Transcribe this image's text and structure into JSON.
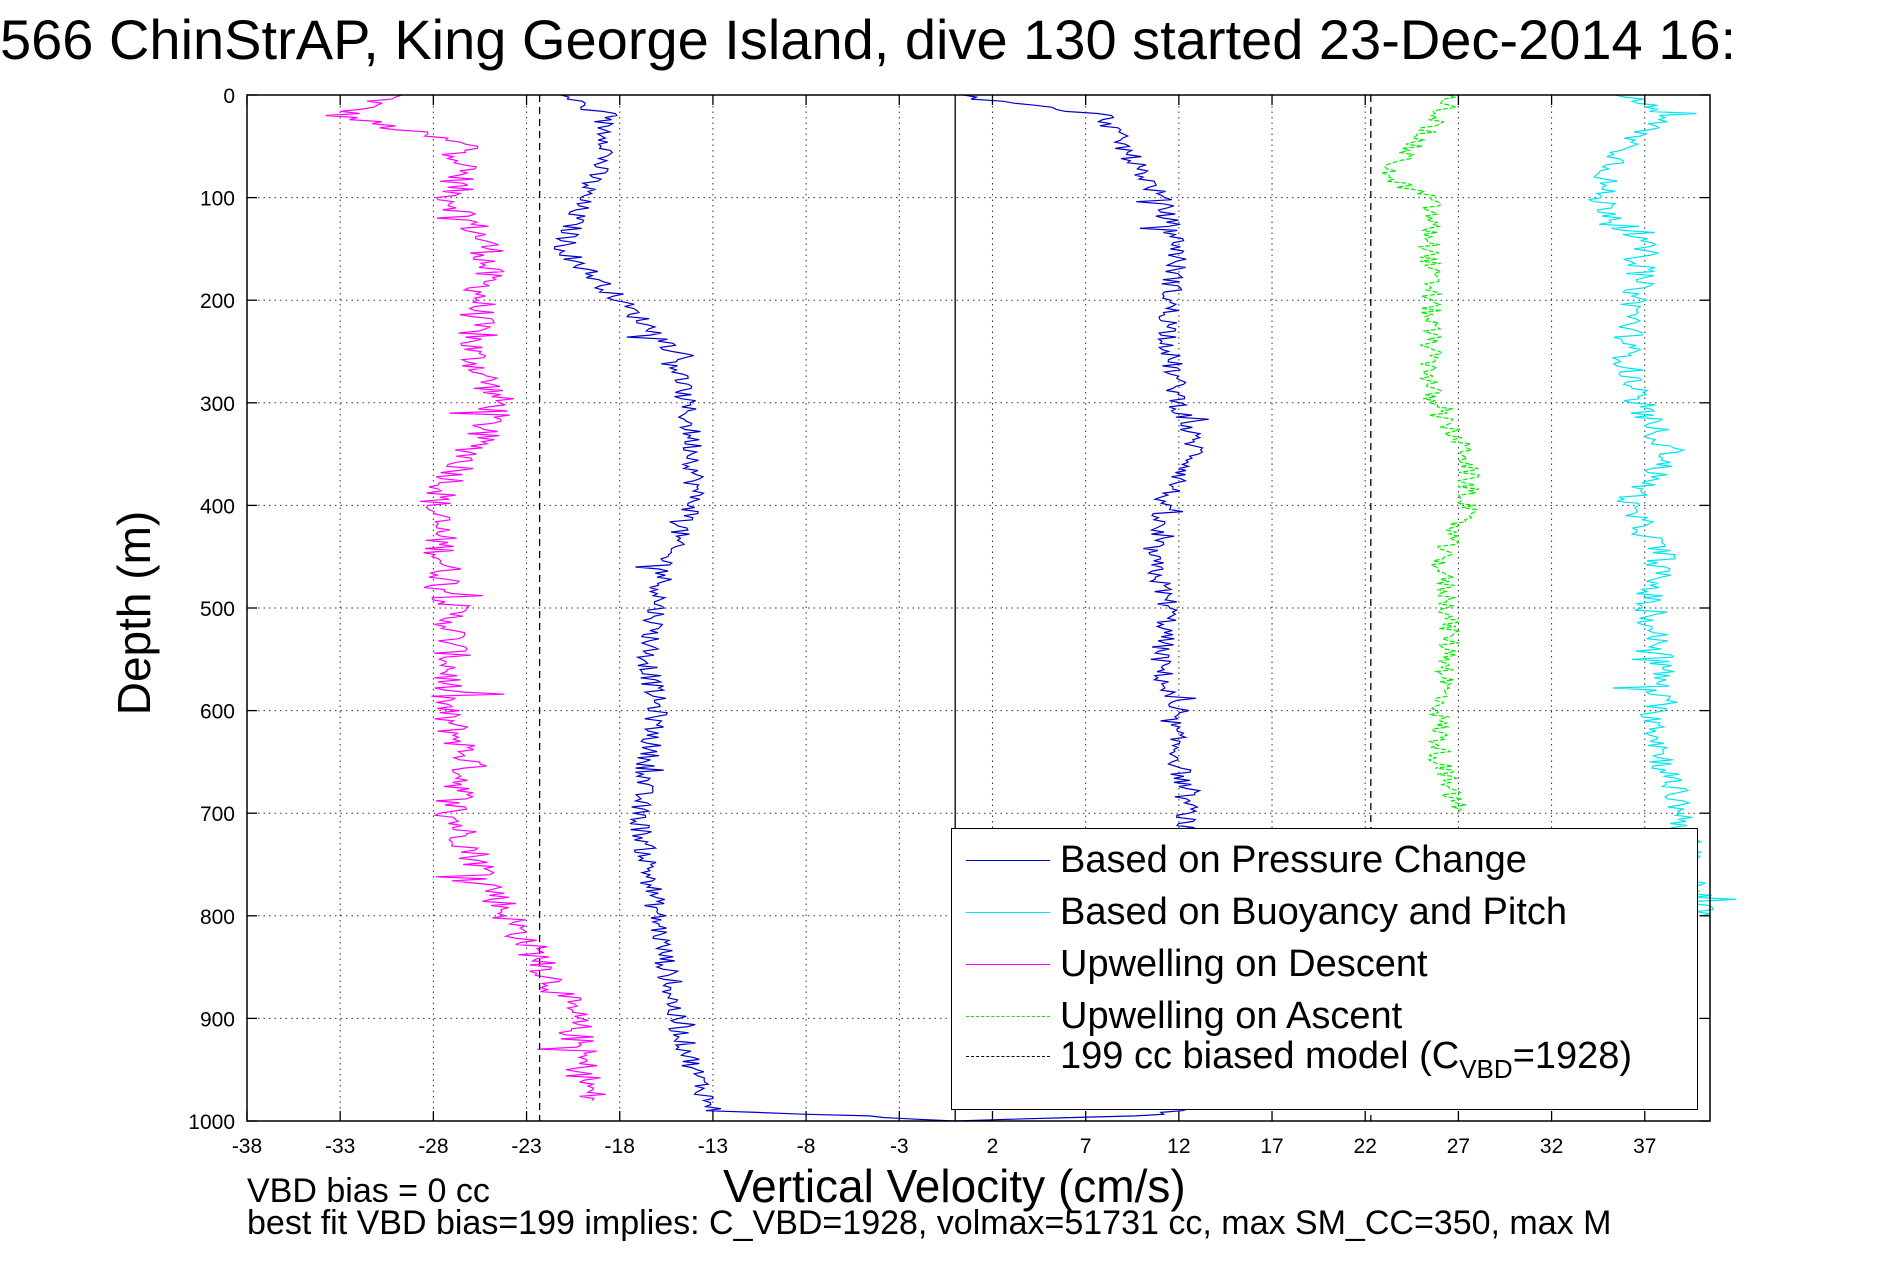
{
  "title": "566 ChinStrAP, King George Island, dive 130 started 23-Dec-2014 16:",
  "footer": {
    "line1": "VBD bias = 0 cc",
    "line2": "best fit VBD bias=199 implies: C_VBD=1928, volmax=51731 cc, max SM_CC=350, max M"
  },
  "chart_data": {
    "type": "line",
    "xlabel": "Vertical Velocity (cm/s)",
    "ylabel": "Depth (m)",
    "xlim": [
      -38,
      40.5
    ],
    "ylim": [
      1000,
      0
    ],
    "x_ticks": [
      -38,
      -33,
      -28,
      -23,
      -18,
      -13,
      -8,
      -3,
      2,
      7,
      12,
      17,
      22,
      27,
      32,
      37
    ],
    "y_ticks": [
      0,
      100,
      200,
      300,
      400,
      500,
      600,
      700,
      800,
      900,
      1000
    ],
    "grid": true,
    "legend_position": "bottom-right",
    "vertical_reference_lines": [
      {
        "x": 0,
        "style": "solid",
        "color": "#000000"
      },
      {
        "x": -22.3,
        "style": "dashed",
        "color": "#000000"
      },
      {
        "x": 22.3,
        "style": "dashed",
        "color": "#000000"
      }
    ],
    "series": [
      {
        "name": "Based on Pressure Change",
        "color": "#0000cc",
        "style": "solid",
        "depth": [
          0,
          20,
          50,
          100,
          150,
          200,
          250,
          300,
          350,
          400,
          450,
          500,
          550,
          600,
          650,
          700,
          750,
          800,
          850,
          900,
          950,
          990,
          995,
          1000
        ],
        "descent_velocity": [
          -21,
          -19,
          -18.5,
          -20,
          -21,
          -18,
          -15,
          -14.5,
          -14,
          -14,
          -15.5,
          -16,
          -16.5,
          -16,
          -16.5,
          -17,
          -16.5,
          -16,
          -15.5,
          -15,
          -14,
          -13,
          -5,
          0
        ],
        "ascent_velocity": [
          0,
          8,
          9,
          11,
          12,
          11.5,
          11.5,
          12,
          13,
          11,
          10.5,
          11.5,
          11,
          11.5,
          12,
          12.5,
          12,
          12,
          12,
          12,
          12,
          12,
          10,
          0
        ]
      },
      {
        "name": "Based on Buoyancy and Pitch",
        "color": "#00e5ee",
        "style": "solid",
        "depth": [
          0,
          20,
          50,
          80,
          100,
          150,
          200,
          250,
          300,
          350,
          400,
          450,
          500,
          550,
          600,
          650,
          700,
          750,
          800
        ],
        "velocity": [
          36,
          38,
          36,
          35,
          34.5,
          37,
          36.5,
          36,
          36.5,
          38.5,
          36,
          38,
          37,
          38,
          37.5,
          38,
          39,
          39.5,
          40
        ]
      },
      {
        "name": "Upwelling on Descent",
        "color": "#ff00ff",
        "style": "solid",
        "depth": [
          0,
          20,
          50,
          100,
          150,
          200,
          250,
          300,
          350,
          400,
          450,
          500,
          550,
          600,
          650,
          700,
          750,
          800,
          850,
          900,
          950,
          980
        ],
        "velocity": [
          -30,
          -33,
          -26,
          -27,
          -25,
          -25.5,
          -26,
          -24.5,
          -26,
          -28,
          -27.5,
          -27,
          -27,
          -27.5,
          -26,
          -27,
          -25.5,
          -24,
          -22,
          -20.5,
          -20,
          -19.5
        ]
      },
      {
        "name": "Upwelling on Ascent",
        "color": "#00ee00",
        "style": "dashed",
        "depth": [
          0,
          20,
          50,
          80,
          100,
          150,
          200,
          250,
          300,
          350,
          400,
          450,
          500,
          550,
          600,
          650,
          700
        ],
        "velocity": [
          27,
          26,
          24.5,
          23,
          25.5,
          25.5,
          25.5,
          25.5,
          25.5,
          27.5,
          27.5,
          26,
          26.5,
          26.5,
          26,
          26,
          27
        ]
      },
      {
        "name": "199 cc biased model (CVBD=1928)",
        "legend_label_main": "199 cc biased model (C",
        "legend_label_sub": "VBD",
        "legend_label_tail": "=1928)",
        "color": "#000000",
        "style": "dashed"
      }
    ]
  }
}
